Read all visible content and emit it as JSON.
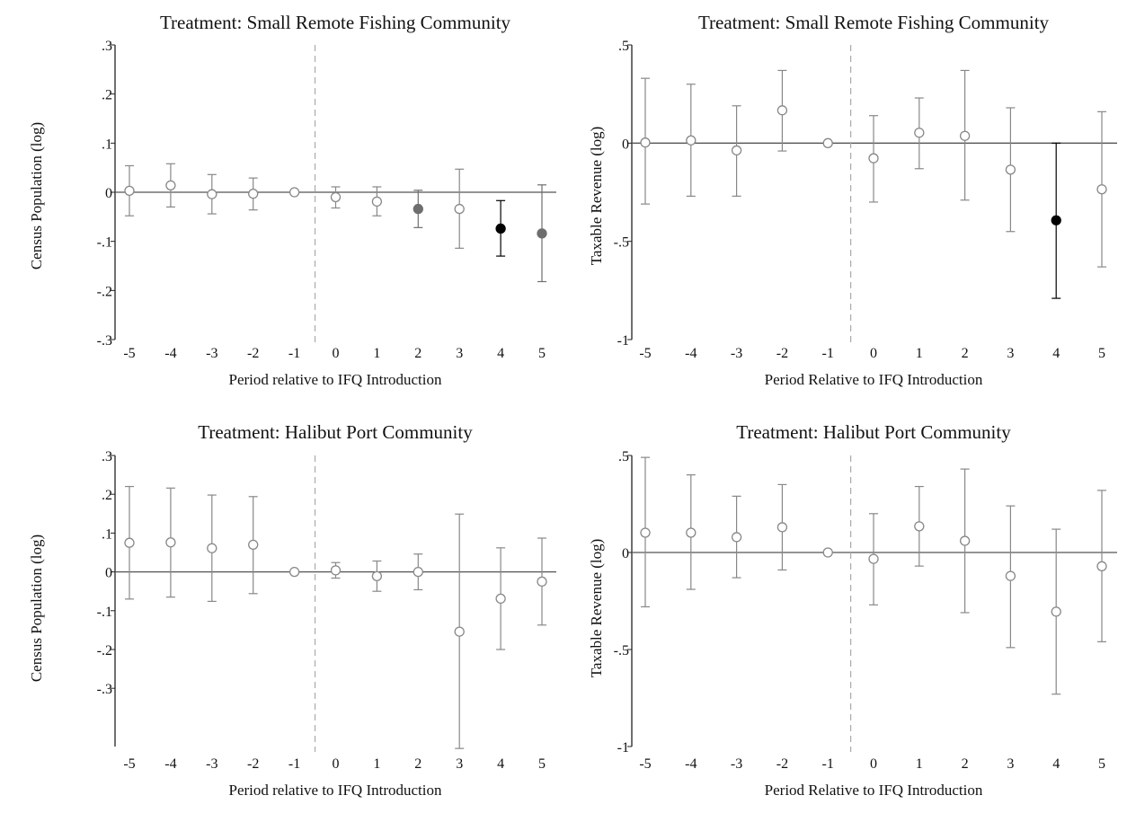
{
  "colors": {
    "insignificant": "#888888",
    "sig10": "#6e6e6e",
    "sig5": "#000000",
    "zero_line": "#555555",
    "event_line": "#aaaaaa"
  },
  "chart_data": [
    {
      "type": "scatter",
      "title": "Treatment: Small Remote Fishing Community",
      "xlabel": "Period relative to IFQ Introduction",
      "ylabel": "Census Population (log)",
      "x_ticks": [
        "-5",
        "-4",
        "-3",
        "-2",
        "-1",
        "0",
        "1",
        "2",
        "3",
        "4",
        "5"
      ],
      "y_ticks": [
        ".3",
        ".2",
        ".1",
        "0",
        "-.1",
        "-.2",
        "-.3"
      ],
      "y_tick_values": [
        0.3,
        0.2,
        0.1,
        0,
        -0.1,
        -0.2,
        -0.3
      ],
      "ylim": [
        -0.3,
        0.3
      ],
      "event_line_between": [
        -1,
        0
      ],
      "points": [
        {
          "x": -5,
          "y": 0.003,
          "lo": -0.048,
          "hi": 0.054,
          "style": "hollow"
        },
        {
          "x": -4,
          "y": 0.014,
          "lo": -0.03,
          "hi": 0.058,
          "style": "hollow"
        },
        {
          "x": -3,
          "y": -0.004,
          "lo": -0.044,
          "hi": 0.036,
          "style": "hollow"
        },
        {
          "x": -2,
          "y": -0.003,
          "lo": -0.036,
          "hi": 0.029,
          "style": "hollow"
        },
        {
          "x": -1,
          "y": 0.0,
          "lo": 0.0,
          "hi": 0.0,
          "style": "hollow"
        },
        {
          "x": 0,
          "y": -0.01,
          "lo": -0.032,
          "hi": 0.011,
          "style": "hollow"
        },
        {
          "x": 1,
          "y": -0.019,
          "lo": -0.048,
          "hi": 0.011,
          "style": "hollow"
        },
        {
          "x": 2,
          "y": -0.034,
          "lo": -0.072,
          "hi": 0.004,
          "style": "gray"
        },
        {
          "x": 3,
          "y": -0.034,
          "lo": -0.114,
          "hi": 0.047,
          "style": "hollow"
        },
        {
          "x": 4,
          "y": -0.074,
          "lo": -0.13,
          "hi": -0.017,
          "style": "black"
        },
        {
          "x": 5,
          "y": -0.084,
          "lo": -0.182,
          "hi": 0.015,
          "style": "gray"
        }
      ]
    },
    {
      "type": "scatter",
      "title": "Treatment: Small Remote Fishing Community",
      "xlabel": "Period Relative to IFQ Introduction",
      "ylabel": "Taxable Revenue (log)",
      "x_ticks": [
        "-5",
        "-4",
        "-3",
        "-2",
        "-1",
        "0",
        "1",
        "2",
        "3",
        "4",
        "5"
      ],
      "y_ticks": [
        ".5",
        "0",
        "-.5",
        "-1"
      ],
      "y_tick_values": [
        0.5,
        0,
        -0.5,
        -1
      ],
      "ylim": [
        -1,
        0.5
      ],
      "event_line_between": [
        -1,
        0
      ],
      "points": [
        {
          "x": -5,
          "y": 0.003,
          "lo": -0.31,
          "hi": 0.33,
          "style": "hollow"
        },
        {
          "x": -4,
          "y": 0.014,
          "lo": -0.27,
          "hi": 0.3,
          "style": "hollow"
        },
        {
          "x": -3,
          "y": -0.037,
          "lo": -0.27,
          "hi": 0.19,
          "style": "hollow"
        },
        {
          "x": -2,
          "y": 0.167,
          "lo": -0.04,
          "hi": 0.37,
          "style": "hollow"
        },
        {
          "x": -1,
          "y": 0.0,
          "lo": 0.0,
          "hi": 0.0,
          "style": "hollow"
        },
        {
          "x": 0,
          "y": -0.077,
          "lo": -0.3,
          "hi": 0.14,
          "style": "hollow"
        },
        {
          "x": 1,
          "y": 0.053,
          "lo": -0.13,
          "hi": 0.23,
          "style": "hollow"
        },
        {
          "x": 2,
          "y": 0.037,
          "lo": -0.29,
          "hi": 0.37,
          "style": "hollow"
        },
        {
          "x": 3,
          "y": -0.135,
          "lo": -0.45,
          "hi": 0.18,
          "style": "hollow"
        },
        {
          "x": 4,
          "y": -0.393,
          "lo": -0.79,
          "hi": 0.0,
          "style": "black"
        },
        {
          "x": 5,
          "y": -0.235,
          "lo": -0.63,
          "hi": 0.16,
          "style": "hollow"
        }
      ]
    },
    {
      "type": "scatter",
      "title": "Treatment: Halibut Port Community",
      "xlabel": "Period relative to IFQ Introduction",
      "ylabel": "Census Population (log)",
      "x_ticks": [
        "-5",
        "-4",
        "-3",
        "-2",
        "-1",
        "0",
        "1",
        "2",
        "3",
        "4",
        "5"
      ],
      "y_ticks": [
        ".3",
        ".2",
        ".1",
        "0",
        "-.1",
        "-.2",
        "-.3"
      ],
      "y_tick_values": [
        0.3,
        0.2,
        0.1,
        0,
        -0.1,
        -0.2,
        -0.3
      ],
      "ylim": [
        -0.45,
        0.3
      ],
      "event_line_between": [
        -1,
        0
      ],
      "points": [
        {
          "x": -5,
          "y": 0.075,
          "lo": -0.07,
          "hi": 0.22,
          "style": "hollow"
        },
        {
          "x": -4,
          "y": 0.076,
          "lo": -0.065,
          "hi": 0.216,
          "style": "hollow"
        },
        {
          "x": -3,
          "y": 0.061,
          "lo": -0.076,
          "hi": 0.198,
          "style": "hollow"
        },
        {
          "x": -2,
          "y": 0.07,
          "lo": -0.056,
          "hi": 0.194,
          "style": "hollow"
        },
        {
          "x": -1,
          "y": 0.0,
          "lo": 0.0,
          "hi": 0.0,
          "style": "hollow"
        },
        {
          "x": 0,
          "y": 0.004,
          "lo": -0.016,
          "hi": 0.024,
          "style": "hollow"
        },
        {
          "x": 1,
          "y": -0.011,
          "lo": -0.05,
          "hi": 0.028,
          "style": "hollow"
        },
        {
          "x": 2,
          "y": 0.0,
          "lo": -0.046,
          "hi": 0.046,
          "style": "hollow"
        },
        {
          "x": 3,
          "y": -0.154,
          "lo": -0.455,
          "hi": 0.149,
          "style": "hollow"
        },
        {
          "x": 4,
          "y": -0.069,
          "lo": -0.2,
          "hi": 0.062,
          "style": "hollow"
        },
        {
          "x": 5,
          "y": -0.025,
          "lo": -0.137,
          "hi": 0.087,
          "style": "hollow"
        }
      ]
    },
    {
      "type": "scatter",
      "title": "Treatment: Halibut Port Community",
      "xlabel": "Period Relative to IFQ Introduction",
      "ylabel": "Taxable Revenue (log)",
      "x_ticks": [
        "-5",
        "-4",
        "-3",
        "-2",
        "-1",
        "0",
        "1",
        "2",
        "3",
        "4",
        "5"
      ],
      "y_ticks": [
        ".5",
        "0",
        "-.5",
        "-1"
      ],
      "y_tick_values": [
        0.5,
        0,
        -0.5,
        -1
      ],
      "ylim": [
        -1,
        0.5
      ],
      "event_line_between": [
        -1,
        0
      ],
      "points": [
        {
          "x": -5,
          "y": 0.102,
          "lo": -0.28,
          "hi": 0.49,
          "style": "hollow"
        },
        {
          "x": -4,
          "y": 0.102,
          "lo": -0.19,
          "hi": 0.4,
          "style": "hollow"
        },
        {
          "x": -3,
          "y": 0.079,
          "lo": -0.13,
          "hi": 0.29,
          "style": "hollow"
        },
        {
          "x": -2,
          "y": 0.13,
          "lo": -0.09,
          "hi": 0.35,
          "style": "hollow"
        },
        {
          "x": -1,
          "y": 0.0,
          "lo": 0.0,
          "hi": 0.0,
          "style": "hollow"
        },
        {
          "x": 0,
          "y": -0.033,
          "lo": -0.27,
          "hi": 0.2,
          "style": "hollow"
        },
        {
          "x": 1,
          "y": 0.135,
          "lo": -0.07,
          "hi": 0.34,
          "style": "hollow"
        },
        {
          "x": 2,
          "y": 0.06,
          "lo": -0.31,
          "hi": 0.43,
          "style": "hollow"
        },
        {
          "x": 3,
          "y": -0.121,
          "lo": -0.49,
          "hi": 0.24,
          "style": "hollow"
        },
        {
          "x": 4,
          "y": -0.305,
          "lo": -0.73,
          "hi": 0.12,
          "style": "hollow"
        },
        {
          "x": 5,
          "y": -0.071,
          "lo": -0.46,
          "hi": 0.32,
          "style": "hollow"
        }
      ]
    }
  ]
}
